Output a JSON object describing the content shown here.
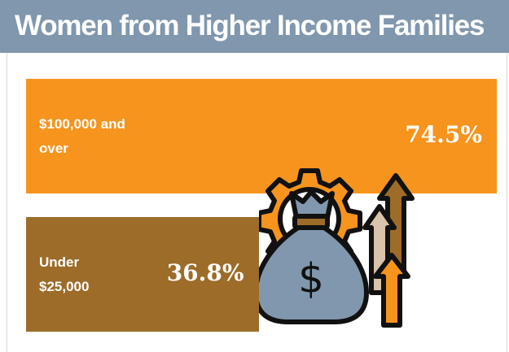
{
  "chart_data": {
    "type": "bar",
    "orientation": "horizontal",
    "title": "Women from Higher Income Families",
    "categories": [
      "$100,000 and over",
      "Under $25,000"
    ],
    "values": [
      74.5,
      36.8
    ],
    "value_labels": [
      "74.5%",
      "36.8%"
    ],
    "colors": [
      "#f7941d",
      "#9d6c29"
    ]
  }
}
